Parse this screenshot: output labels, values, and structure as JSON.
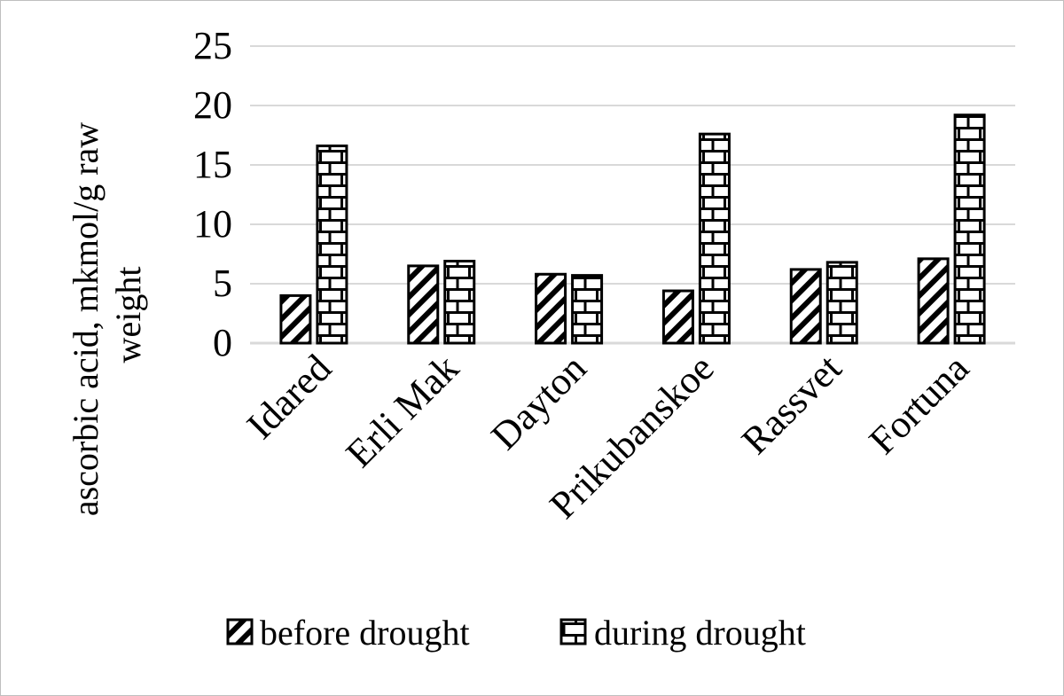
{
  "chart_data": {
    "type": "bar",
    "ylabel_lines": [
      "ascorbic acid, mkmol/g raw",
      "weight"
    ],
    "xlabel": "",
    "ylim": [
      0,
      25
    ],
    "yticks": [
      0,
      5,
      10,
      15,
      20,
      25
    ],
    "grid": true,
    "legend_position": "bottom",
    "categories": [
      "Idared",
      "Erli Mak",
      "Dayton",
      "Prikubanskoe",
      "Rassvet",
      "Fortuna"
    ],
    "series": [
      {
        "name": "before drought",
        "pattern": "diagonal-hatch",
        "values": [
          4.0,
          6.5,
          5.8,
          4.4,
          6.2,
          7.1
        ]
      },
      {
        "name": "during drought",
        "pattern": "brick",
        "values": [
          16.6,
          6.9,
          5.7,
          17.6,
          6.8,
          19.2
        ]
      }
    ],
    "colors": {
      "stroke": "#000000",
      "grid": "#d9d9d9",
      "border": "#bfbfbf"
    }
  }
}
